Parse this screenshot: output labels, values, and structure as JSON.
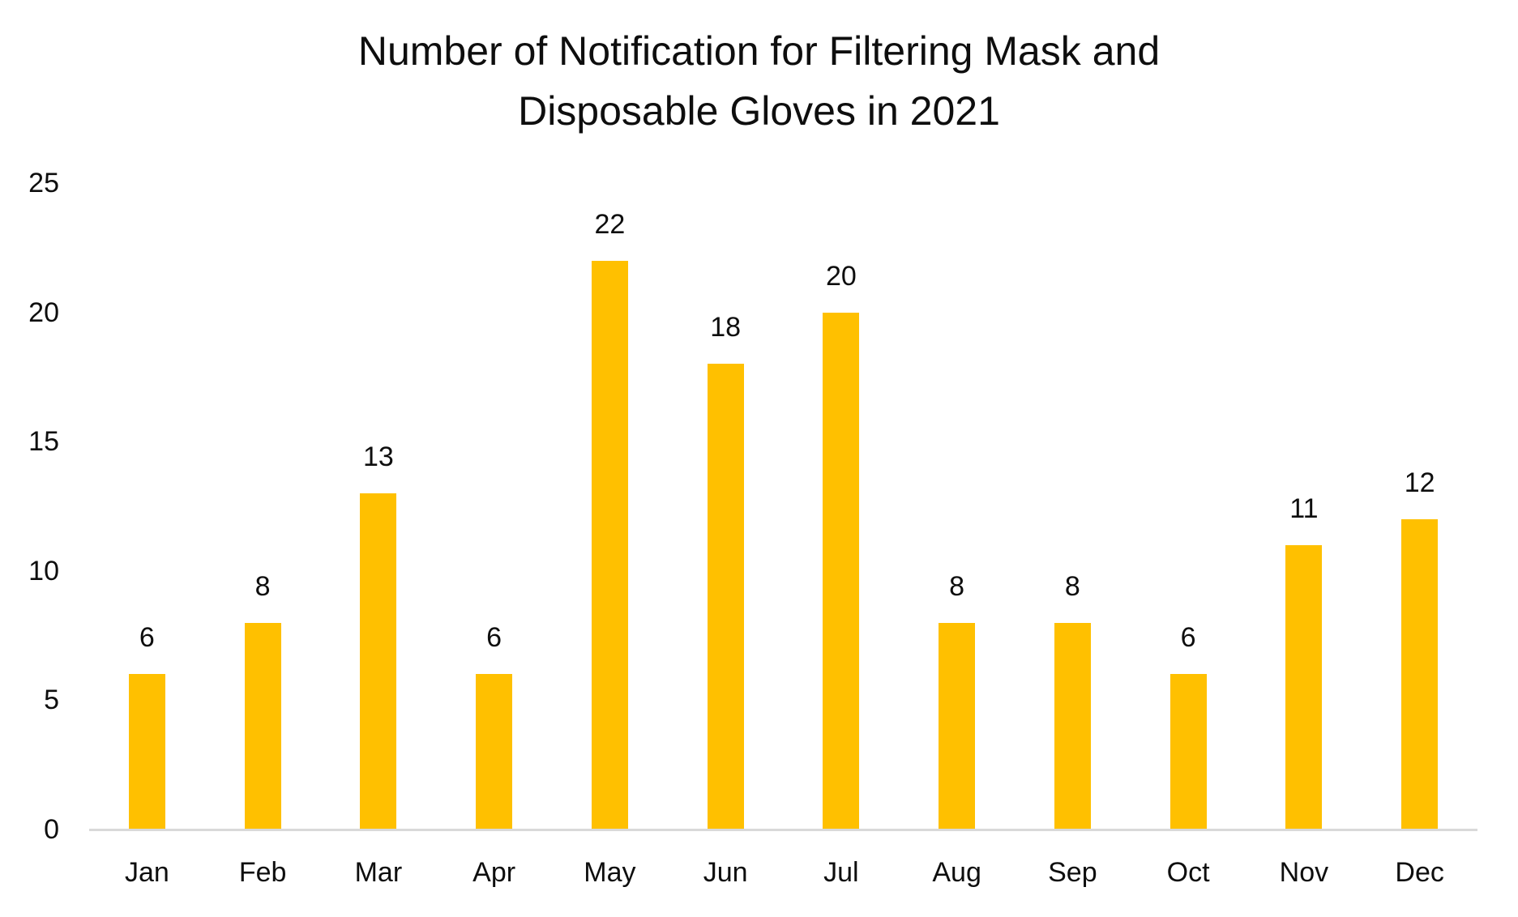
{
  "chart_data": {
    "type": "bar",
    "title": "Number of Notification for Filtering Mask and Disposable Gloves in 2021",
    "title_lines": [
      "Number of Notification for Filtering Mask and",
      "Disposable Gloves in 2021"
    ],
    "categories": [
      "Jan",
      "Feb",
      "Mar",
      "Apr",
      "May",
      "Jun",
      "Jul",
      "Aug",
      "Sep",
      "Oct",
      "Nov",
      "Dec"
    ],
    "values": [
      6,
      8,
      13,
      6,
      22,
      18,
      20,
      8,
      8,
      6,
      11,
      12
    ],
    "xlabel": "",
    "ylabel": "",
    "ylim": [
      0,
      25
    ],
    "yticks": [
      0,
      5,
      10,
      15,
      20,
      25
    ],
    "grid": false,
    "legend": false,
    "data_labels": true,
    "bar_color": "#FFC000",
    "axis_line_color": "#D9D9D9",
    "text_color": "#0E0E0E"
  }
}
